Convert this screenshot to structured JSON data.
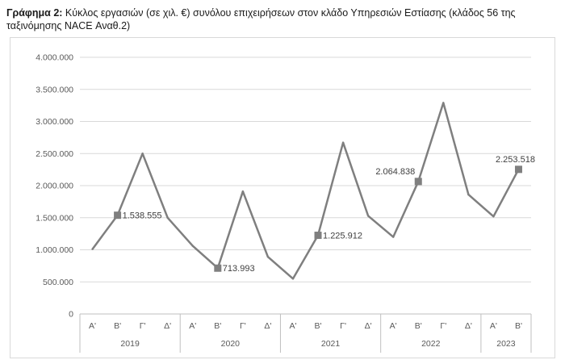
{
  "title": {
    "label": "Γράφημα 2:",
    "text": " Κύκλος εργασιών (σε χιλ. €) συνόλου επιχειρήσεων στον κλάδο Υπηρεσιών Εστίασης (κλάδος 56 της ταξινόμησης NACE Αναθ.2)"
  },
  "chart_data": {
    "type": "line",
    "title": "Κύκλος εργασιών (σε χιλ. €) συνόλου επιχειρήσεων στον κλάδο Υπηρεσιών Εστίασης (κλάδος 56 της ταξινόμησης NACE Αναθ.2)",
    "xlabel": "",
    "ylabel": "",
    "ylim": [
      0,
      4000000
    ],
    "yticks": [
      0,
      500000,
      1000000,
      1500000,
      2000000,
      2500000,
      3000000,
      3500000,
      4000000
    ],
    "ytick_labels": [
      "0",
      "500.000",
      "1.000.000",
      "1.500.000",
      "2.000.000",
      "2.500.000",
      "3.000.000",
      "3.500.000",
      "4.000.000"
    ],
    "grid": true,
    "legend": "none",
    "categories": [
      "Α'",
      "Β'",
      "Γ'",
      "Δ'",
      "Α'",
      "Β'",
      "Γ'",
      "Δ'",
      "Α'",
      "Β'",
      "Γ'",
      "Δ'",
      "Α'",
      "Β'",
      "Γ'",
      "Δ'",
      "Α'",
      "Β'"
    ],
    "groups": [
      {
        "label": "2019",
        "count": 4
      },
      {
        "label": "2020",
        "count": 4
      },
      {
        "label": "2021",
        "count": 4
      },
      {
        "label": "2022",
        "count": 4
      },
      {
        "label": "2023",
        "count": 2
      }
    ],
    "series": [
      {
        "color": "#7f7f7f",
        "values": [
          1010000,
          1538555,
          2500000,
          1500000,
          1060000,
          713993,
          1910000,
          890000,
          550000,
          1225912,
          2670000,
          1530000,
          1200000,
          2064838,
          3290000,
          1860000,
          1520000,
          2253518
        ]
      }
    ],
    "labeled_points": [
      {
        "index": 1,
        "text": "1.538.555",
        "anchor": "right"
      },
      {
        "index": 5,
        "text": "713.993",
        "anchor": "right"
      },
      {
        "index": 9,
        "text": "1.225.912",
        "anchor": "right"
      },
      {
        "index": 13,
        "text": "2.064.838",
        "anchor": "above-left"
      },
      {
        "index": 17,
        "text": "2.253.518",
        "anchor": "above"
      }
    ],
    "colors": {
      "line": "#7f7f7f",
      "marker": "#7f7f7f",
      "grid": "#d9d9d9",
      "axis": "#bfbfbf"
    }
  }
}
